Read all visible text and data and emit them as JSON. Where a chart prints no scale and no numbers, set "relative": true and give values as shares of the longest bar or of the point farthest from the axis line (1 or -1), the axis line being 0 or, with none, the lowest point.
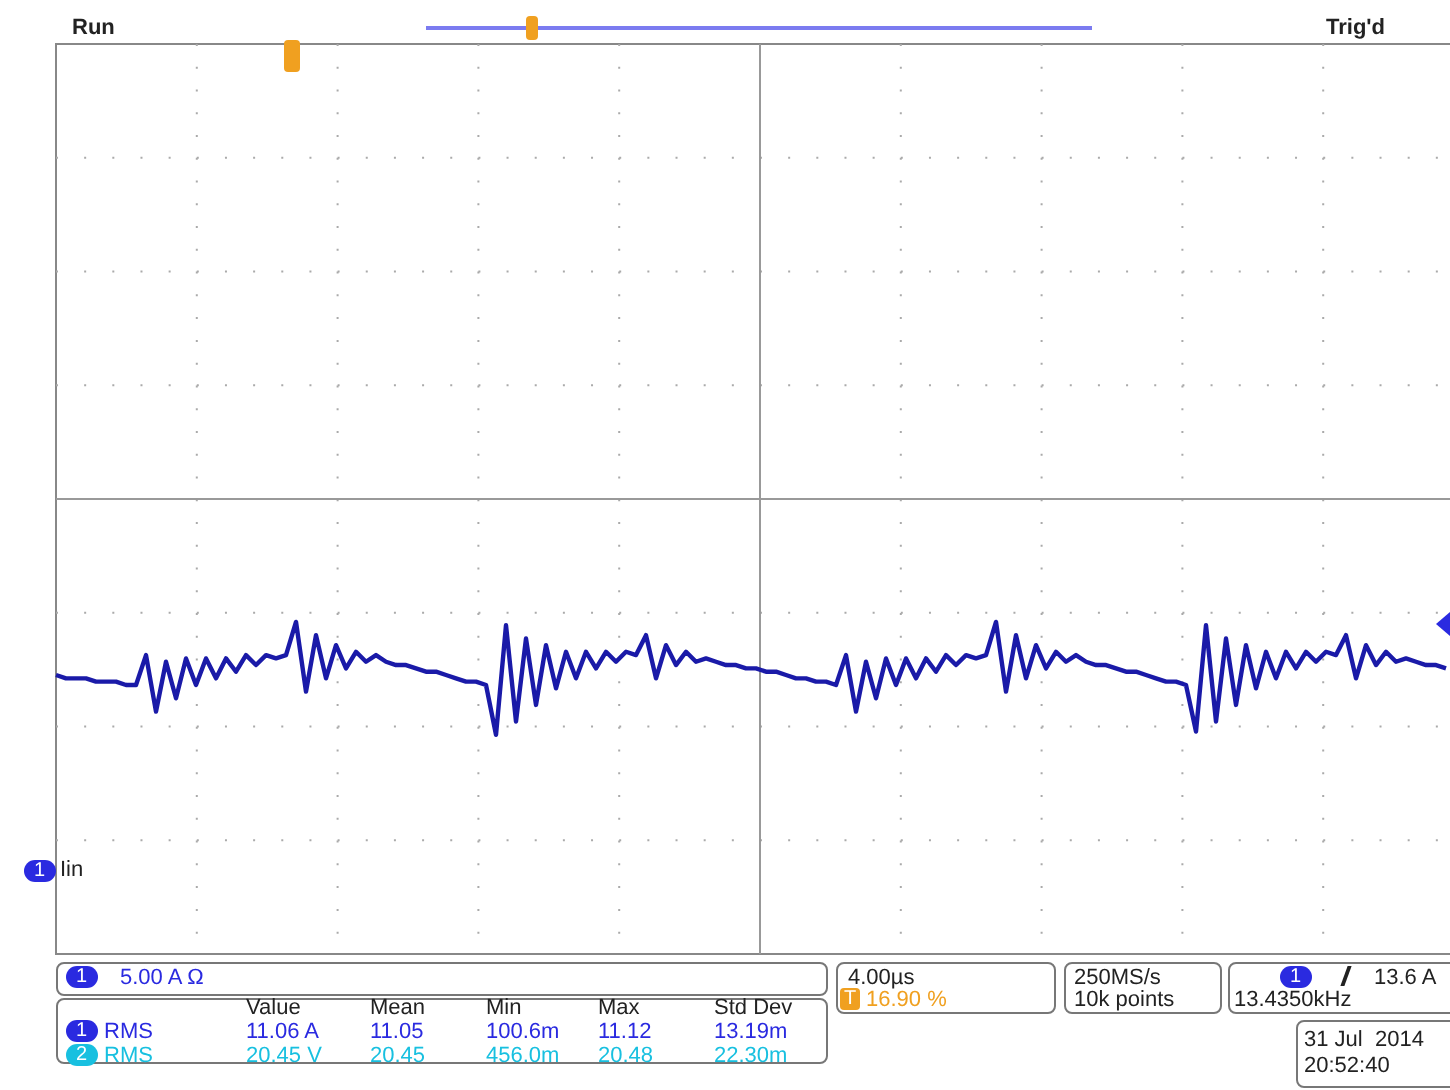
{
  "chart_data": {
    "type": "line",
    "relative": true,
    "marker": "none",
    "categories": [
      null,
      null,
      null,
      null,
      null,
      null,
      null,
      null,
      null,
      null,
      null,
      null,
      null,
      null,
      null,
      null,
      null,
      null,
      null,
      null,
      null,
      null,
      null,
      null,
      null,
      null,
      null,
      null,
      null,
      null,
      null,
      null,
      null,
      null,
      null,
      null,
      null,
      null,
      null,
      null,
      null,
      null,
      null,
      null,
      null,
      null,
      null,
      null,
      null,
      null,
      null,
      null,
      null,
      null,
      null,
      null,
      null,
      null,
      null,
      null,
      null,
      null,
      null,
      null,
      null,
      null,
      null,
      null,
      null,
      null,
      null,
      null,
      null,
      null,
      null,
      null,
      null,
      null,
      null,
      null,
      null,
      null,
      null,
      null,
      null,
      null,
      null,
      null,
      null,
      null,
      null,
      null,
      null,
      null,
      null,
      null,
      null,
      null,
      null,
      null,
      null,
      null,
      null,
      null,
      null,
      null,
      null,
      null,
      null,
      null,
      null,
      null,
      null,
      null,
      null,
      null,
      null,
      null,
      null,
      null,
      null,
      null,
      null,
      null,
      null,
      null,
      null,
      null,
      null,
      null,
      null,
      null,
      null,
      null,
      null,
      null,
      null,
      null,
      null,
      null
    ],
    "series": [
      {
        "color": "#1a1aa8",
        "values": [
          0.84,
          0.83,
          0.83,
          0.83,
          0.82,
          0.82,
          0.82,
          0.81,
          0.81,
          0.9,
          0.73,
          0.88,
          0.77,
          0.89,
          0.81,
          0.89,
          0.83,
          0.89,
          0.85,
          0.9,
          0.87,
          0.9,
          0.89,
          0.9,
          1.0,
          0.79,
          0.96,
          0.83,
          0.93,
          0.86,
          0.91,
          0.88,
          0.9,
          0.88,
          0.87,
          0.87,
          0.86,
          0.85,
          0.85,
          0.84,
          0.83,
          0.82,
          0.82,
          0.81,
          0.66,
          0.99,
          0.7,
          0.95,
          0.75,
          0.93,
          0.8,
          0.91,
          0.83,
          0.91,
          0.86,
          0.91,
          0.88,
          0.91,
          0.9,
          0.96,
          0.83,
          0.93,
          0.87,
          0.91,
          0.88,
          0.89,
          0.88,
          0.87,
          0.87,
          0.86,
          0.86,
          0.85,
          0.85,
          0.84,
          0.83,
          0.83,
          0.82,
          0.82,
          0.81,
          0.9,
          0.73,
          0.88,
          0.77,
          0.89,
          0.81,
          0.89,
          0.83,
          0.89,
          0.85,
          0.9,
          0.87,
          0.9,
          0.89,
          0.9,
          1.0,
          0.79,
          0.96,
          0.83,
          0.93,
          0.86,
          0.91,
          0.88,
          0.9,
          0.88,
          0.87,
          0.87,
          0.86,
          0.85,
          0.85,
          0.84,
          0.83,
          0.82,
          0.82,
          0.81,
          0.67,
          0.99,
          0.7,
          0.95,
          0.75,
          0.93,
          0.8,
          0.91,
          0.83,
          0.91,
          0.86,
          0.91,
          0.88,
          0.91,
          0.9,
          0.96,
          0.83,
          0.93,
          0.87,
          0.91,
          0.88,
          0.89,
          0.88,
          0.87,
          0.87,
          0.86
        ]
      }
    ],
    "annotations": [
      "Run",
      "Trig'd",
      "Iin",
      "5.00 A Ω",
      "Value",
      "Mean",
      "Min",
      "Max",
      "Std Dev",
      "RMS",
      "11.06 A",
      "11.05",
      "100.6m",
      "11.12",
      "13.19m",
      "RMS",
      "20.45 V",
      "20.45",
      "456.0m",
      "20.48",
      "22.30m",
      "4.00µs",
      "16.90 %",
      "250MS/s",
      "10k points",
      "13.6 A",
      "13.4350kHz",
      "31 Jul  2014",
      "20:52:40",
      "1",
      "1",
      "1",
      "2",
      "1",
      "T"
    ]
  }
}
